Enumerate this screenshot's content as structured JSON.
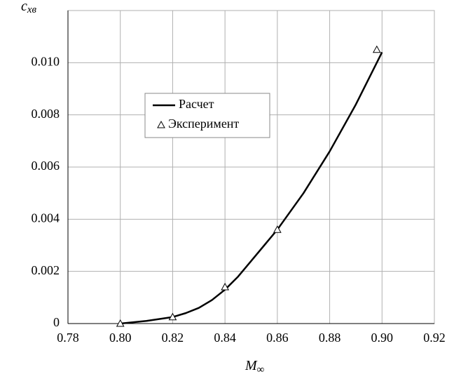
{
  "chart_data": {
    "type": "line",
    "x_label": "M",
    "x_label_sub": "∞",
    "y_label": "c",
    "y_label_sub": "xв",
    "xlim": [
      0.78,
      0.92
    ],
    "xticks": [
      0.78,
      {
        "value": 0.8,
        "label": "0.80"
      },
      0.82,
      0.84,
      0.86,
      0.88,
      {
        "value": 0.9,
        "label": "0.90"
      },
      0.92
    ],
    "ylim": [
      0,
      0.012
    ],
    "yticks": [
      0,
      0.002,
      0.004,
      0.006,
      0.008,
      {
        "value": 0.01,
        "label": "0.010"
      }
    ],
    "grid": true,
    "series": [
      {
        "name": "Расчет",
        "color": "#000000",
        "marker": "none",
        "x": [
          0.8,
          0.81,
          0.82,
          0.825,
          0.83,
          0.835,
          0.84,
          0.845,
          0.85,
          0.86,
          0.87,
          0.88,
          0.89,
          0.9
        ],
        "values": [
          0,
          0.0001,
          0.00025,
          0.0004,
          0.0006,
          0.0009,
          0.0013,
          0.0018,
          0.0024,
          0.0036,
          0.005,
          0.0066,
          0.0084,
          0.0104
        ]
      },
      {
        "name": "Эксперимент",
        "color": "#000000",
        "marker": "triangle",
        "x": [
          0.8,
          0.82,
          0.84,
          0.86,
          0.898
        ],
        "values": [
          0,
          0.00025,
          0.0014,
          0.0036,
          0.0105
        ]
      }
    ]
  }
}
